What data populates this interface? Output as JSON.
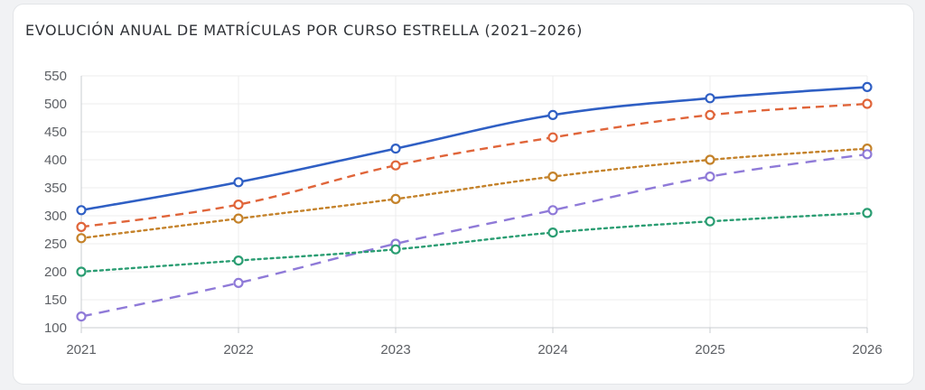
{
  "title": "EVOLUCIÓN ANUAL DE MATRÍCULAS POR CURSO ESTRELLA (2021–2026)",
  "chart_data": {
    "type": "line",
    "title": "EVOLUCIÓN ANUAL DE MATRÍCULAS POR CURSO ESTRELLA (2021–2026)",
    "xlabel": "",
    "ylabel": "",
    "categories": [
      "2021",
      "2022",
      "2023",
      "2024",
      "2025",
      "2026"
    ],
    "ylim": [
      100,
      550
    ],
    "yticks": [
      100,
      150,
      200,
      250,
      300,
      350,
      400,
      450,
      500,
      550
    ],
    "grid": true,
    "legend": "none",
    "series": [
      {
        "values": [
          310,
          360,
          420,
          480,
          510,
          530
        ],
        "color": "#2f5fc4",
        "style": "solid"
      },
      {
        "values": [
          280,
          320,
          390,
          440,
          480,
          500
        ],
        "color": "#e0653a",
        "style": "dashed"
      },
      {
        "values": [
          260,
          295,
          330,
          370,
          400,
          420
        ],
        "color": "#c4822a",
        "style": "dotted"
      },
      {
        "values": [
          120,
          180,
          250,
          310,
          370,
          410
        ],
        "color": "#8f7ad8",
        "style": "longdash"
      },
      {
        "values": [
          200,
          220,
          240,
          270,
          290,
          305
        ],
        "color": "#2a9d72",
        "style": "dotted"
      }
    ]
  }
}
